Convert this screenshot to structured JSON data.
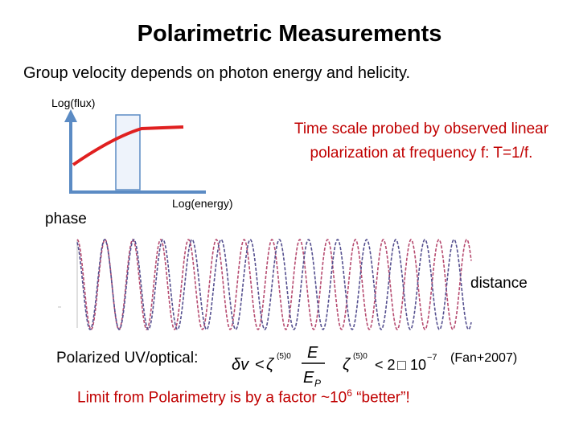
{
  "title": "Polarimetric Measurements",
  "subtitle": "Group velocity depends on photon energy and helicity.",
  "flux_axis_label": "Log(flux)",
  "energy_axis_label": "Log(energy)",
  "phase_label": "phase",
  "timescale_note": "Time scale probed by observed linear polarization at frequency f: T=1/f.",
  "distance_label": "distance",
  "uv_label": "Polarized UV/optical:",
  "reference": "(Fan+2007)",
  "formula": {
    "delta_v": "δv",
    "lt": "<",
    "zeta": "ζ",
    "sup": "(5)0",
    "numerator": "E",
    "denominator": "E",
    "denominator_sub": "P",
    "bound_prefix": "< 2",
    "box": "□",
    "ten": "10",
    "exponent": "−7"
  },
  "limit": {
    "text_before": "Limit from Polarimetry is by a factor ~10",
    "exponent": "6",
    "text_after": " “better”!"
  },
  "colors": {
    "accent": "#c00000",
    "axis": "#5b8bc4",
    "curve": "#e02020",
    "band_fill": "#eef3fb",
    "band_stroke": "#5b8bc4",
    "wave_red": "#b64b70",
    "wave_blue": "#55508f"
  }
}
